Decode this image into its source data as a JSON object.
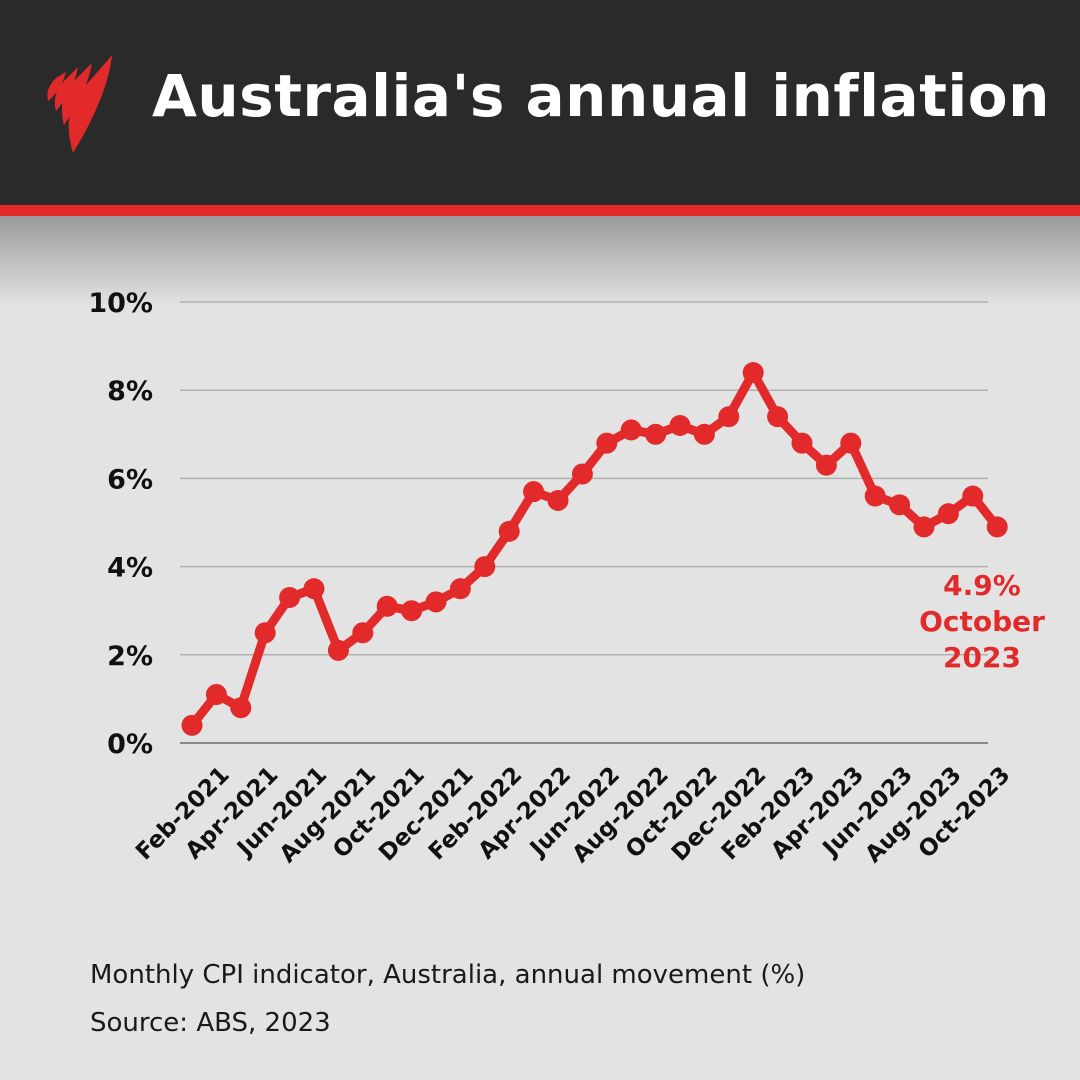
{
  "header": {
    "title": "Australia's annual inflation",
    "logo": "SBS"
  },
  "colors": {
    "accent": "#e22a2a",
    "header_bg": "#2a2a2a",
    "background": "#e3e3e3"
  },
  "chart_data": {
    "type": "line",
    "title": "Australia's annual inflation",
    "xlabel": "",
    "ylabel": "",
    "ylim": [
      0,
      10
    ],
    "yticks": [
      "0%",
      "2%",
      "4%",
      "6%",
      "8%",
      "10%"
    ],
    "ytick_values": [
      0,
      2,
      4,
      6,
      8,
      10
    ],
    "grid": true,
    "x": [
      "Jan-2021",
      "Feb-2021",
      "Mar-2021",
      "Apr-2021",
      "May-2021",
      "Jun-2021",
      "Jul-2021",
      "Aug-2021",
      "Sep-2021",
      "Oct-2021",
      "Nov-2021",
      "Dec-2021",
      "Jan-2022",
      "Feb-2022",
      "Mar-2022",
      "Apr-2022",
      "May-2022",
      "Jun-2022",
      "Jul-2022",
      "Aug-2022",
      "Sep-2022",
      "Oct-2022",
      "Nov-2022",
      "Dec-2022",
      "Jan-2023",
      "Feb-2023",
      "Mar-2023",
      "Apr-2023",
      "May-2023",
      "Jun-2023",
      "Jul-2023",
      "Aug-2023",
      "Sep-2023",
      "Oct-2023"
    ],
    "values": [
      0.4,
      1.1,
      0.8,
      2.5,
      3.3,
      3.5,
      2.1,
      2.5,
      3.1,
      3.0,
      3.2,
      3.5,
      4.0,
      4.8,
      5.7,
      5.5,
      6.1,
      6.8,
      7.1,
      7.0,
      7.2,
      7.0,
      7.4,
      8.4,
      7.4,
      6.8,
      6.3,
      6.8,
      5.6,
      5.4,
      4.9,
      5.2,
      5.6,
      4.9
    ],
    "xtick_labels": [
      "Feb-2021",
      "Apr-2021",
      "Jun-2021",
      "Aug-2021",
      "Oct-2021",
      "Dec-2021",
      "Feb-2022",
      "Apr-2022",
      "Jun-2022",
      "Aug-2022",
      "Oct-2022",
      "Dec-2022",
      "Feb-2023",
      "Apr-2023",
      "Jun-2023",
      "Aug-2023",
      "Oct-2023"
    ],
    "xtick_indices": [
      1,
      3,
      5,
      7,
      9,
      11,
      13,
      15,
      17,
      19,
      21,
      23,
      25,
      27,
      29,
      31,
      33
    ],
    "annotation": {
      "lines": [
        "4.9%",
        "October",
        "2023"
      ]
    }
  },
  "footer": {
    "caption": "Monthly CPI indicator, Australia, annual movement (%)",
    "source": "Source: ABS, 2023"
  }
}
